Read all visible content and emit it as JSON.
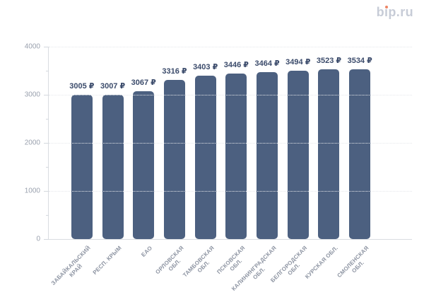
{
  "header": {
    "logo_text": "bip.ru"
  },
  "chart_data": {
    "type": "bar",
    "title": "",
    "categories": [
      "ЗАБАЙКАЛЬСКИЙ КРАЙ",
      "РЕСП. КРЫМ",
      "ЕАО",
      "ОРЛОВСКАЯ ОБЛ.",
      "ТАМБОВСКАЯ ОБЛ.",
      "ПСКОВСКАЯ ОБЛ.",
      "КАЛИНИНГРАДСКАЯ ОБЛ.",
      "БЕЛГОРОДСКАЯ ОБЛ.",
      "КУРСКАЯ ОБЛ.",
      "СМОЛЕНСКАЯ ОБЛ."
    ],
    "category_lines": [
      [
        "ЗАБАЙКАЛЬСКИЙ",
        "КРАЙ"
      ],
      [
        "РЕСП. КРЫМ"
      ],
      [
        "ЕАО"
      ],
      [
        "ОРЛОВСКАЯ",
        "ОБЛ."
      ],
      [
        "ТАМБОВСКАЯ",
        "ОБЛ."
      ],
      [
        "ПСКОВСКАЯ",
        "ОБЛ."
      ],
      [
        "КАЛИНИНГРАДСКАЯ",
        "ОБЛ."
      ],
      [
        "БЕЛГОРОДСКАЯ",
        "ОБЛ."
      ],
      [
        "КУРСКАЯ ОБЛ."
      ],
      [
        "СМОЛЕНСКАЯ",
        "ОБЛ."
      ]
    ],
    "values": [
      3005,
      3007,
      3067,
      3316,
      3403,
      3446,
      3464,
      3494,
      3523,
      3534
    ],
    "value_labels": [
      "3005 ₽",
      "3007 ₽",
      "3067 ₽",
      "3316 ₽",
      "3403 ₽",
      "3446 ₽",
      "3464 ₽",
      "3494 ₽",
      "3523 ₽",
      "3534 ₽"
    ],
    "xlabel": "",
    "ylabel": "",
    "ylim": [
      0,
      4000
    ],
    "y_major_ticks": [
      0,
      1000,
      2000,
      3000,
      4000
    ],
    "y_minor_ticks": [
      500,
      1500,
      2500,
      3500
    ],
    "grid": "horizontal dotted lines at major ticks",
    "legend": "none",
    "colors": {
      "bar": "#4c6080",
      "value_label": "#3b4b6b",
      "axis_tick_label": "#9aa1ae",
      "category_label": "#8d94a2",
      "axis_line": "#d9dce1",
      "gridline": "#e5e7eb",
      "logo_text": "#c7ccd7",
      "logo_dot": "#ed8565",
      "background": "#ffffff"
    }
  }
}
